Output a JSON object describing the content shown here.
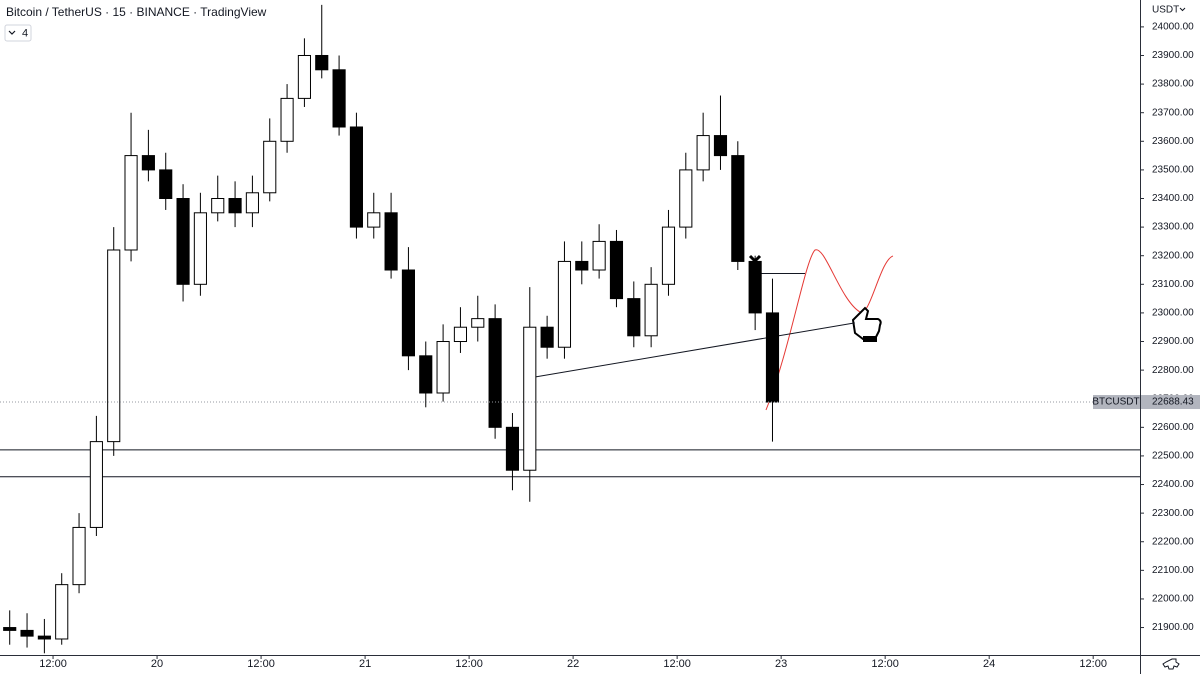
{
  "header": {
    "title": "Bitcoin / TetherUS · 15 · BINANCE · TradingView",
    "badge": "4"
  },
  "chart_data": {
    "type": "candlestick",
    "x": [
      7,
      9,
      11,
      13,
      15,
      17,
      19,
      21,
      23,
      25,
      27,
      29,
      31,
      33,
      35,
      37,
      39,
      41,
      43,
      45,
      47,
      49,
      51,
      53,
      55,
      57,
      59,
      61,
      63,
      65,
      67,
      69,
      71,
      73,
      75,
      77,
      79,
      81,
      83,
      85,
      87,
      89,
      91,
      93,
      95
    ],
    "open": [
      21900,
      21890,
      21870,
      21860,
      22050,
      22250,
      22550,
      23220,
      23550,
      23500,
      23400,
      23100,
      23350,
      23400,
      23350,
      23420,
      23600,
      23750,
      23900,
      23850,
      23650,
      23300,
      23350,
      23150,
      22850,
      22720,
      22900,
      22950,
      22980,
      22600,
      22450,
      22950,
      22880,
      23180,
      23150,
      23250,
      23050,
      22920,
      23100,
      23300,
      23500,
      23620,
      23550,
      23180,
      23000
    ],
    "high": [
      21960,
      21950,
      21930,
      22090,
      22300,
      22640,
      23300,
      23700,
      23640,
      23560,
      23450,
      23420,
      23480,
      23460,
      23480,
      23680,
      23800,
      23960,
      24077,
      23900,
      23700,
      23420,
      23420,
      23230,
      22900,
      22960,
      23020,
      23060,
      23030,
      22650,
      23090,
      22990,
      23250,
      23250,
      23310,
      23290,
      23110,
      23160,
      23360,
      23560,
      23700,
      23760,
      23600,
      23200,
      23120
    ],
    "low": [
      21840,
      21830,
      21810,
      21840,
      22020,
      22220,
      22500,
      23180,
      23460,
      23360,
      23040,
      23060,
      23320,
      23300,
      23300,
      23390,
      23560,
      23720,
      23820,
      23620,
      23260,
      23260,
      23120,
      22800,
      22670,
      22690,
      22860,
      22900,
      22560,
      22380,
      22340,
      22840,
      22840,
      23100,
      23120,
      23020,
      22880,
      22880,
      23060,
      23260,
      23460,
      23500,
      23150,
      22940,
      22550
    ],
    "close": [
      21890,
      21870,
      21860,
      22050,
      22250,
      22550,
      23220,
      23550,
      23500,
      23400,
      23100,
      23350,
      23400,
      23350,
      23420,
      23600,
      23750,
      23900,
      23850,
      23650,
      23300,
      23350,
      23150,
      22850,
      22720,
      22900,
      22950,
      22980,
      22600,
      22450,
      22950,
      22880,
      23180,
      23150,
      23250,
      23050,
      22920,
      23100,
      23300,
      23500,
      23620,
      23550,
      23180,
      23000,
      22688.43
    ],
    "up_color": "#ffffff",
    "down_color": "#000000",
    "xlim": [
      5.88,
      137.4
    ],
    "xticks": [
      {
        "value": 12,
        "label": "12:00"
      },
      {
        "value": 24,
        "label": "20"
      },
      {
        "value": 36,
        "label": "12:00"
      },
      {
        "value": 48,
        "label": "21"
      },
      {
        "value": 60,
        "label": "12:00"
      },
      {
        "value": 72,
        "label": "22"
      },
      {
        "value": 84,
        "label": "12:00"
      },
      {
        "value": 96,
        "label": "23"
      },
      {
        "value": 108,
        "label": "12:00"
      },
      {
        "value": 120,
        "label": "24"
      },
      {
        "value": 132,
        "label": "12:00"
      }
    ],
    "ylim": [
      21804,
      24094
    ],
    "yticks": [
      {
        "value": 21900,
        "label": "21900.00"
      },
      {
        "value": 22000,
        "label": "22000.00"
      },
      {
        "value": 22100,
        "label": "22100.00"
      },
      {
        "value": 22200,
        "label": "22200.00"
      },
      {
        "value": 22300,
        "label": "22300.00"
      },
      {
        "value": 22400,
        "label": "22400.00"
      },
      {
        "value": 22500,
        "label": "22500.00"
      },
      {
        "value": 22600,
        "label": "22600.00"
      },
      {
        "value": 22700,
        "label": "22700.00"
      },
      {
        "value": 22800,
        "label": "22800.00"
      },
      {
        "value": 22900,
        "label": "22900.00"
      },
      {
        "value": 23000,
        "label": "23000.00"
      },
      {
        "value": 23100,
        "label": "23100.00"
      },
      {
        "value": 23200,
        "label": "23200.00"
      },
      {
        "value": 23300,
        "label": "23300.00"
      },
      {
        "value": 23400,
        "label": "23400.00"
      },
      {
        "value": 23500,
        "label": "23500.00"
      },
      {
        "value": 23600,
        "label": "23600.00"
      },
      {
        "value": 23700,
        "label": "23700.00"
      },
      {
        "value": 23800,
        "label": "23800.00"
      },
      {
        "value": 23900,
        "label": "23900.00"
      },
      {
        "value": 24000,
        "label": "24000.00"
      }
    ],
    "currency": "USDT",
    "last_price": {
      "name": "BTCUSDT",
      "value": 22688.43
    },
    "horizontal_lines": [
      22521,
      22427
    ],
    "trend_line": {
      "x": [
        67.6,
        104.5
      ],
      "y": [
        22776,
        22965
      ]
    }
  }
}
